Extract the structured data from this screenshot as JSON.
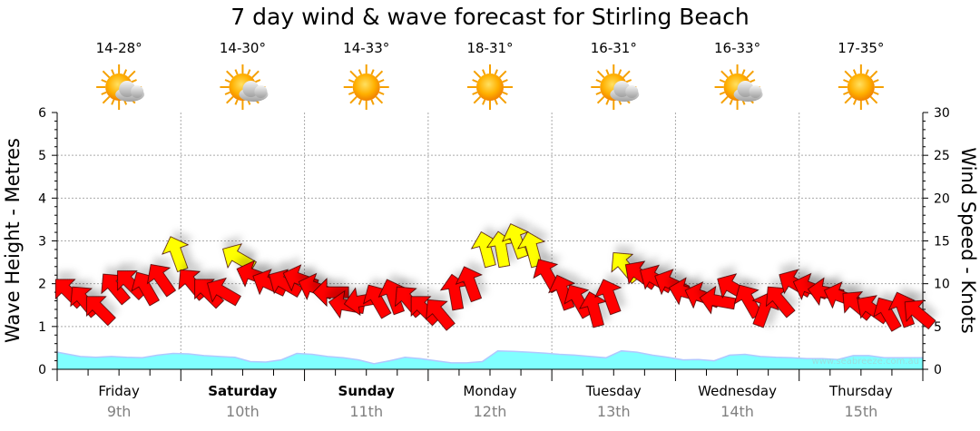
{
  "chart_data": {
    "type": "line",
    "title": "7 day wind & wave forecast for Stirling Beach",
    "ylabel_left": "Wave Height - Metres",
    "ylabel_right": "Wind Speed - Knots",
    "ylim_left": [
      0,
      6
    ],
    "ylim_right": [
      0,
      30
    ],
    "yticks_left": [
      "0",
      "1",
      "2",
      "3",
      "4",
      "5",
      "6"
    ],
    "yticks_right": [
      "0",
      "5",
      "10",
      "15",
      "20",
      "25",
      "30"
    ],
    "grid": true,
    "watermark": "www.seabreeze.com.au",
    "days": [
      {
        "day": "Friday",
        "date": "9th",
        "temp": "14-28°",
        "weather": "partly-cloudy",
        "weekend": false
      },
      {
        "day": "Saturday",
        "date": "10th",
        "temp": "14-30°",
        "weather": "partly-cloudy",
        "weekend": true
      },
      {
        "day": "Sunday",
        "date": "11th",
        "temp": "14-33°",
        "weather": "sunny",
        "weekend": true
      },
      {
        "day": "Monday",
        "date": "12th",
        "temp": "18-31°",
        "weather": "sunny",
        "weekend": false
      },
      {
        "day": "Tuesday",
        "date": "13th",
        "temp": "16-31°",
        "weather": "partly-cloudy",
        "weekend": false
      },
      {
        "day": "Wednesday",
        "date": "14th",
        "temp": "16-33°",
        "weather": "partly-cloudy",
        "weekend": false
      },
      {
        "day": "Thursday",
        "date": "15th",
        "temp": "17-35°",
        "weather": "sunny",
        "weekend": false
      }
    ],
    "interval_hours": 3,
    "series": [
      {
        "name": "Wind Speed (knots)",
        "axis": "right",
        "values": [
          9,
          8,
          7,
          9.5,
          10,
          9.5,
          10.5,
          13.5,
          10,
          9,
          9,
          13,
          11,
          10,
          10,
          10.5,
          9.5,
          9,
          7.5,
          8,
          8,
          8.5,
          8,
          7,
          6.5,
          9,
          10,
          14,
          14,
          15,
          14,
          11,
          9,
          8,
          7,
          8.5,
          12,
          11,
          10.5,
          10,
          9,
          8.5,
          8,
          9.5,
          8,
          7,
          8,
          10,
          9.5,
          9,
          8.5,
          7.5,
          7,
          6.5,
          7,
          6.5
        ],
        "direction_from_deg": [
          135,
          140,
          135,
          140,
          135,
          150,
          145,
          160,
          140,
          135,
          120,
          120,
          110,
          115,
          120,
          110,
          110,
          90,
          100,
          80,
          150,
          160,
          140,
          135,
          140,
          170,
          160,
          165,
          170,
          160,
          165,
          150,
          160,
          150,
          165,
          160,
          140,
          125,
          120,
          115,
          105,
          110,
          100,
          120,
          150,
          200,
          140,
          120,
          110,
          100,
          110,
          130,
          125,
          150,
          160,
          130
        ]
      },
      {
        "name": "Wave Height (m)",
        "axis": "left",
        "color": "#80ffff",
        "values": [
          0.4,
          0.3,
          0.28,
          0.3,
          0.28,
          0.27,
          0.33,
          0.37,
          0.36,
          0.32,
          0.3,
          0.28,
          0.18,
          0.17,
          0.22,
          0.37,
          0.35,
          0.3,
          0.27,
          0.22,
          0.13,
          0.2,
          0.28,
          0.25,
          0.2,
          0.15,
          0.15,
          0.18,
          0.43,
          0.42,
          0.4,
          0.38,
          0.35,
          0.33,
          0.3,
          0.27,
          0.43,
          0.4,
          0.33,
          0.28,
          0.22,
          0.23,
          0.2,
          0.33,
          0.35,
          0.3,
          0.28,
          0.27,
          0.25,
          0.25,
          0.23,
          0.32,
          0.32,
          0.27,
          0.27,
          0.27
        ]
      }
    ],
    "colors": {
      "wind_normal": "#ff0000",
      "wind_strong": "#ffff00",
      "wave": "#80ffff",
      "wave_line": "#b0c8ff",
      "date": "#808080"
    },
    "strong_threshold_knots": 12
  }
}
